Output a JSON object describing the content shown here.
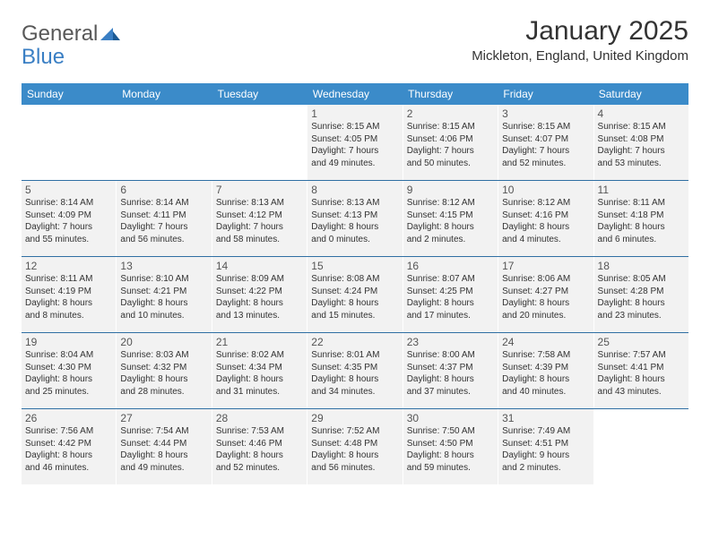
{
  "logo": {
    "general": "General",
    "blue": "Blue"
  },
  "title": "January 2025",
  "location": "Mickleton, England, United Kingdom",
  "colors": {
    "header_bar": "#3b8bc9",
    "cell_bg": "#f2f2f2",
    "row_border": "#2f6fa3",
    "logo_blue": "#3a7fc4",
    "text": "#333333"
  },
  "days_of_week": [
    "Sunday",
    "Monday",
    "Tuesday",
    "Wednesday",
    "Thursday",
    "Friday",
    "Saturday"
  ],
  "weeks": [
    [
      null,
      null,
      null,
      {
        "n": "1",
        "sr": "Sunrise: 8:15 AM",
        "ss": "Sunset: 4:05 PM",
        "d1": "Daylight: 7 hours",
        "d2": "and 49 minutes."
      },
      {
        "n": "2",
        "sr": "Sunrise: 8:15 AM",
        "ss": "Sunset: 4:06 PM",
        "d1": "Daylight: 7 hours",
        "d2": "and 50 minutes."
      },
      {
        "n": "3",
        "sr": "Sunrise: 8:15 AM",
        "ss": "Sunset: 4:07 PM",
        "d1": "Daylight: 7 hours",
        "d2": "and 52 minutes."
      },
      {
        "n": "4",
        "sr": "Sunrise: 8:15 AM",
        "ss": "Sunset: 4:08 PM",
        "d1": "Daylight: 7 hours",
        "d2": "and 53 minutes."
      }
    ],
    [
      {
        "n": "5",
        "sr": "Sunrise: 8:14 AM",
        "ss": "Sunset: 4:09 PM",
        "d1": "Daylight: 7 hours",
        "d2": "and 55 minutes."
      },
      {
        "n": "6",
        "sr": "Sunrise: 8:14 AM",
        "ss": "Sunset: 4:11 PM",
        "d1": "Daylight: 7 hours",
        "d2": "and 56 minutes."
      },
      {
        "n": "7",
        "sr": "Sunrise: 8:13 AM",
        "ss": "Sunset: 4:12 PM",
        "d1": "Daylight: 7 hours",
        "d2": "and 58 minutes."
      },
      {
        "n": "8",
        "sr": "Sunrise: 8:13 AM",
        "ss": "Sunset: 4:13 PM",
        "d1": "Daylight: 8 hours",
        "d2": "and 0 minutes."
      },
      {
        "n": "9",
        "sr": "Sunrise: 8:12 AM",
        "ss": "Sunset: 4:15 PM",
        "d1": "Daylight: 8 hours",
        "d2": "and 2 minutes."
      },
      {
        "n": "10",
        "sr": "Sunrise: 8:12 AM",
        "ss": "Sunset: 4:16 PM",
        "d1": "Daylight: 8 hours",
        "d2": "and 4 minutes."
      },
      {
        "n": "11",
        "sr": "Sunrise: 8:11 AM",
        "ss": "Sunset: 4:18 PM",
        "d1": "Daylight: 8 hours",
        "d2": "and 6 minutes."
      }
    ],
    [
      {
        "n": "12",
        "sr": "Sunrise: 8:11 AM",
        "ss": "Sunset: 4:19 PM",
        "d1": "Daylight: 8 hours",
        "d2": "and 8 minutes."
      },
      {
        "n": "13",
        "sr": "Sunrise: 8:10 AM",
        "ss": "Sunset: 4:21 PM",
        "d1": "Daylight: 8 hours",
        "d2": "and 10 minutes."
      },
      {
        "n": "14",
        "sr": "Sunrise: 8:09 AM",
        "ss": "Sunset: 4:22 PM",
        "d1": "Daylight: 8 hours",
        "d2": "and 13 minutes."
      },
      {
        "n": "15",
        "sr": "Sunrise: 8:08 AM",
        "ss": "Sunset: 4:24 PM",
        "d1": "Daylight: 8 hours",
        "d2": "and 15 minutes."
      },
      {
        "n": "16",
        "sr": "Sunrise: 8:07 AM",
        "ss": "Sunset: 4:25 PM",
        "d1": "Daylight: 8 hours",
        "d2": "and 17 minutes."
      },
      {
        "n": "17",
        "sr": "Sunrise: 8:06 AM",
        "ss": "Sunset: 4:27 PM",
        "d1": "Daylight: 8 hours",
        "d2": "and 20 minutes."
      },
      {
        "n": "18",
        "sr": "Sunrise: 8:05 AM",
        "ss": "Sunset: 4:28 PM",
        "d1": "Daylight: 8 hours",
        "d2": "and 23 minutes."
      }
    ],
    [
      {
        "n": "19",
        "sr": "Sunrise: 8:04 AM",
        "ss": "Sunset: 4:30 PM",
        "d1": "Daylight: 8 hours",
        "d2": "and 25 minutes."
      },
      {
        "n": "20",
        "sr": "Sunrise: 8:03 AM",
        "ss": "Sunset: 4:32 PM",
        "d1": "Daylight: 8 hours",
        "d2": "and 28 minutes."
      },
      {
        "n": "21",
        "sr": "Sunrise: 8:02 AM",
        "ss": "Sunset: 4:34 PM",
        "d1": "Daylight: 8 hours",
        "d2": "and 31 minutes."
      },
      {
        "n": "22",
        "sr": "Sunrise: 8:01 AM",
        "ss": "Sunset: 4:35 PM",
        "d1": "Daylight: 8 hours",
        "d2": "and 34 minutes."
      },
      {
        "n": "23",
        "sr": "Sunrise: 8:00 AM",
        "ss": "Sunset: 4:37 PM",
        "d1": "Daylight: 8 hours",
        "d2": "and 37 minutes."
      },
      {
        "n": "24",
        "sr": "Sunrise: 7:58 AM",
        "ss": "Sunset: 4:39 PM",
        "d1": "Daylight: 8 hours",
        "d2": "and 40 minutes."
      },
      {
        "n": "25",
        "sr": "Sunrise: 7:57 AM",
        "ss": "Sunset: 4:41 PM",
        "d1": "Daylight: 8 hours",
        "d2": "and 43 minutes."
      }
    ],
    [
      {
        "n": "26",
        "sr": "Sunrise: 7:56 AM",
        "ss": "Sunset: 4:42 PM",
        "d1": "Daylight: 8 hours",
        "d2": "and 46 minutes."
      },
      {
        "n": "27",
        "sr": "Sunrise: 7:54 AM",
        "ss": "Sunset: 4:44 PM",
        "d1": "Daylight: 8 hours",
        "d2": "and 49 minutes."
      },
      {
        "n": "28",
        "sr": "Sunrise: 7:53 AM",
        "ss": "Sunset: 4:46 PM",
        "d1": "Daylight: 8 hours",
        "d2": "and 52 minutes."
      },
      {
        "n": "29",
        "sr": "Sunrise: 7:52 AM",
        "ss": "Sunset: 4:48 PM",
        "d1": "Daylight: 8 hours",
        "d2": "and 56 minutes."
      },
      {
        "n": "30",
        "sr": "Sunrise: 7:50 AM",
        "ss": "Sunset: 4:50 PM",
        "d1": "Daylight: 8 hours",
        "d2": "and 59 minutes."
      },
      {
        "n": "31",
        "sr": "Sunrise: 7:49 AM",
        "ss": "Sunset: 4:51 PM",
        "d1": "Daylight: 9 hours",
        "d2": "and 2 minutes."
      },
      null
    ]
  ]
}
